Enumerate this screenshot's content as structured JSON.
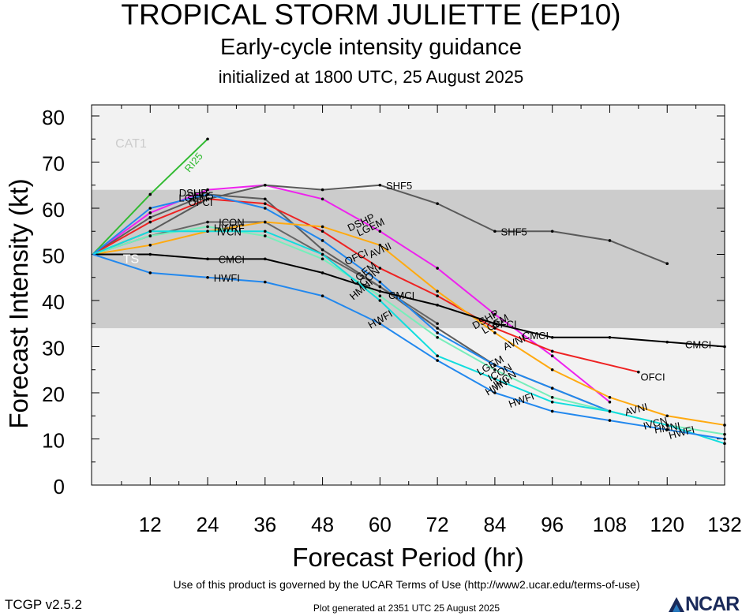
{
  "header": {
    "title": "TROPICAL STORM JULIETTE (EP10)",
    "subtitle": "Early-cycle intensity guidance",
    "init": "initialized at 1800 UTC, 25 August 2025"
  },
  "footer": {
    "terms": "Use of this product is governed by the UCAR Terms of Use (http://www2.ucar.edu/terms-of-use)",
    "version": "TCGP v2.5.2",
    "generated": "Plot generated at 2351 UTC   25 August 2025",
    "logo_text": "NCAR"
  },
  "chart_data": {
    "type": "line",
    "xlabel": "Forecast Period (hr)",
    "ylabel": "Forecast Intensity (kt)",
    "xlim": [
      0,
      132
    ],
    "ylim": [
      0,
      80
    ],
    "xticks": [
      12,
      24,
      36,
      48,
      60,
      72,
      84,
      96,
      108,
      120,
      132
    ],
    "yticks": [
      0,
      10,
      20,
      30,
      40,
      50,
      60,
      70,
      80
    ],
    "grid": false,
    "bands": [
      {
        "label": "TS",
        "from": 34,
        "to": 64,
        "color": "#cccccc"
      },
      {
        "label": "CAT1",
        "from": 64,
        "to": 83,
        "color": "#f2f2f2"
      }
    ],
    "series": [
      {
        "name": "RI25",
        "color": "#33bb33",
        "x": [
          0,
          12,
          24
        ],
        "values": [
          50,
          63,
          75
        ]
      },
      {
        "name": "DSHP",
        "color": "#ee22ee",
        "x": [
          0,
          12,
          24,
          36,
          48,
          60,
          72,
          84,
          96,
          108
        ],
        "values": [
          50,
          59,
          64,
          65,
          62,
          55,
          47,
          37,
          28,
          18
        ]
      },
      {
        "name": "LGEM",
        "color": "#5d5d5d",
        "x": [
          0,
          12,
          24,
          36,
          48,
          60,
          72,
          84,
          96,
          108
        ],
        "values": [
          50,
          58,
          63,
          62,
          51,
          43,
          34,
          26,
          21,
          16
        ]
      },
      {
        "name": "OFCI",
        "color": "#ee2222",
        "x": [
          0,
          12,
          24,
          36,
          48,
          60,
          72,
          84,
          96,
          114
        ],
        "values": [
          50,
          57,
          62,
          61,
          55,
          47,
          41,
          34,
          29,
          24.5
        ]
      },
      {
        "name": "SHF5",
        "color": "#5a5a5a",
        "x": [
          0,
          12,
          24,
          36,
          48,
          60,
          72,
          84,
          96,
          108,
          120
        ],
        "values": [
          50,
          55,
          62,
          65,
          64,
          65,
          61,
          55,
          55,
          53,
          48
        ]
      },
      {
        "name": "ICON",
        "color": "#666666",
        "x": [
          0,
          12,
          24,
          36,
          48,
          60,
          72
        ],
        "values": [
          50,
          54,
          57,
          57,
          50,
          43,
          35
        ]
      },
      {
        "name": "HWRF",
        "color": "#2288ee",
        "x": [
          0,
          12,
          24,
          36,
          48,
          60,
          72,
          84,
          96,
          108
        ],
        "values": [
          50,
          60,
          63,
          60,
          53,
          44,
          33,
          26,
          21,
          16
        ]
      },
      {
        "name": "AVNI",
        "color": "#ffaa11",
        "x": [
          0,
          12,
          24,
          36,
          48,
          60,
          72,
          84,
          96,
          108,
          120,
          132
        ],
        "values": [
          50,
          52,
          55,
          57,
          56,
          52,
          42,
          33,
          25,
          19,
          15,
          13
        ]
      },
      {
        "name": "IVCN",
        "color": "#77eebb",
        "x": [
          0,
          12,
          24,
          36,
          48,
          60,
          72,
          84,
          96,
          108,
          120,
          132
        ],
        "values": [
          50,
          54,
          56,
          54,
          49,
          41,
          32,
          25,
          19,
          16,
          13,
          11
        ]
      },
      {
        "name": "CMCI",
        "color": "#000000",
        "x": [
          0,
          12,
          24,
          36,
          48,
          60,
          72,
          84,
          96,
          108,
          120,
          132
        ],
        "values": [
          50,
          50,
          49,
          49,
          46,
          42,
          39,
          35,
          32,
          32,
          31,
          30
        ]
      },
      {
        "name": "HMNI",
        "color": "#11dddd",
        "x": [
          0,
          12,
          24,
          36,
          48,
          60,
          72,
          84,
          96,
          108,
          120,
          132
        ],
        "values": [
          50,
          55,
          55,
          55,
          50,
          40,
          28,
          23,
          18,
          16,
          13,
          9
        ]
      },
      {
        "name": "HWFI",
        "color": "#2288ee",
        "x": [
          0,
          12,
          24,
          36,
          48,
          60,
          72,
          84,
          96,
          108,
          120,
          132
        ],
        "values": [
          50,
          46,
          45,
          44,
          41,
          35,
          27,
          20,
          16,
          14,
          12,
          10
        ]
      }
    ],
    "labels": [
      {
        "text": "RI25",
        "x": 21,
        "y": 70,
        "color": "#33bb33",
        "rotate": -50
      },
      {
        "text": "DSHP",
        "x": 21,
        "y": 63.4,
        "color": "#000000"
      },
      {
        "text": "LGEM",
        "x": 21,
        "y": 62.3,
        "color": "#000000"
      },
      {
        "text": "SHF5",
        "x": 22.5,
        "y": 62.8,
        "color": "#000000"
      },
      {
        "text": "OFCI",
        "x": 22.5,
        "y": 61.4,
        "color": "#000000"
      },
      {
        "text": "ICON",
        "x": 29,
        "y": 57,
        "color": "#000000"
      },
      {
        "text": "HWRF",
        "x": 28.5,
        "y": 55.8,
        "color": "#000000"
      },
      {
        "text": "IVCN",
        "x": 28.5,
        "y": 55,
        "color": "#000000"
      },
      {
        "text": "SHF5",
        "x": 64,
        "y": 65,
        "color": "#000000"
      },
      {
        "text": "SHF5",
        "x": 88,
        "y": 55,
        "color": "#000000"
      },
      {
        "text": "DSHP",
        "x": 56,
        "y": 57,
        "color": "#000000",
        "rotate": -25
      },
      {
        "text": "LGEM",
        "x": 58,
        "y": 56,
        "color": "#000000",
        "rotate": -25
      },
      {
        "text": "AVNI",
        "x": 60,
        "y": 51,
        "color": "#000000",
        "rotate": -25
      },
      {
        "text": "OFCI",
        "x": 55,
        "y": 49.5,
        "color": "#000000",
        "rotate": -25
      },
      {
        "text": "LGEM",
        "x": 56.5,
        "y": 46,
        "color": "#000000",
        "rotate": -40
      },
      {
        "text": "ICON",
        "x": 57.5,
        "y": 45,
        "color": "#000000",
        "rotate": -40
      },
      {
        "text": "HMNI",
        "x": 56,
        "y": 42.5,
        "color": "#000000",
        "rotate": -40
      },
      {
        "text": "CMCI",
        "x": 64.5,
        "y": 41.2,
        "color": "#000000"
      },
      {
        "text": "HWFI",
        "x": 60,
        "y": 36,
        "color": "#000000",
        "rotate": -30
      },
      {
        "text": "TS",
        "x": 8,
        "y": 49,
        "color": "#ffffff"
      },
      {
        "text": "CAT1",
        "x": 8,
        "y": 74,
        "color": "#cccccc"
      },
      {
        "text": "CMCI",
        "x": 29,
        "y": 49,
        "color": "#000000"
      },
      {
        "text": "HWFI",
        "x": 28,
        "y": 45,
        "color": "#000000"
      },
      {
        "text": "DSHP",
        "x": 82,
        "y": 36,
        "color": "#000000",
        "rotate": -30
      },
      {
        "text": "LGEM",
        "x": 84,
        "y": 35,
        "color": "#000000",
        "rotate": -30
      },
      {
        "text": "OFCI",
        "x": 86,
        "y": 35,
        "color": "#000000"
      },
      {
        "text": "CMCI",
        "x": 92.5,
        "y": 32.5,
        "color": "#000000"
      },
      {
        "text": "AVNI",
        "x": 88,
        "y": 31,
        "color": "#000000",
        "rotate": -25
      },
      {
        "text": "LGEM",
        "x": 83,
        "y": 26,
        "color": "#000000",
        "rotate": -30
      },
      {
        "text": "ICON",
        "x": 85,
        "y": 24.5,
        "color": "#000000",
        "rotate": -30
      },
      {
        "text": "IVCN",
        "x": 86,
        "y": 23,
        "color": "#000000",
        "rotate": -30
      },
      {
        "text": "HMNI",
        "x": 84.5,
        "y": 21.5,
        "color": "#000000",
        "rotate": -30
      },
      {
        "text": "HWFI",
        "x": 89.5,
        "y": 18.5,
        "color": "#000000",
        "rotate": -20
      },
      {
        "text": "OFCI",
        "x": 117,
        "y": 23.5,
        "color": "#000000"
      },
      {
        "text": "CMCI",
        "x": 126.5,
        "y": 30.5,
        "color": "#000000"
      },
      {
        "text": "AVNI",
        "x": 113.5,
        "y": 16.5,
        "color": "#000000",
        "rotate": -15
      },
      {
        "text": "IVCN",
        "x": 117.5,
        "y": 13.5,
        "color": "#000000",
        "rotate": -15
      },
      {
        "text": "HMNI",
        "x": 120,
        "y": 12.5,
        "color": "#000000",
        "rotate": -10
      },
      {
        "text": "HWFI",
        "x": 123,
        "y": 11.5,
        "color": "#000000",
        "rotate": -15
      }
    ]
  }
}
